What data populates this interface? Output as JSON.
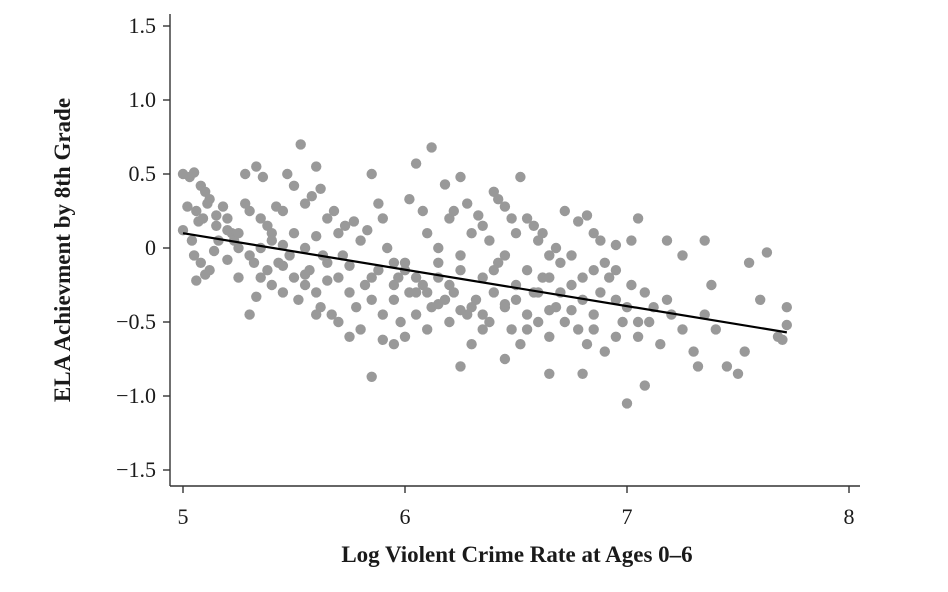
{
  "chart_data": {
    "type": "scatter",
    "title": "",
    "xlabel": "Log Violent Crime Rate at Ages 0–6",
    "ylabel": "ELA Achievment by 8th Grade",
    "xlim": [
      4.95,
      8.05
    ],
    "ylim": [
      -1.6,
      1.6
    ],
    "x_ticks": [
      5,
      6,
      7,
      8
    ],
    "x_tick_labels": [
      "5",
      "6",
      "7",
      "8"
    ],
    "y_ticks": [
      1.5,
      1.0,
      0.5,
      0,
      -0.5,
      -1.0,
      -1.5
    ],
    "y_tick_labels": [
      "1.5",
      "1.0",
      "0.5",
      "0",
      "−0.5",
      "−1.0",
      "−1.5"
    ],
    "grid": false,
    "legend": "none",
    "point_color": "#999999",
    "line_color": "#000000",
    "fit_line": {
      "x": [
        5.0,
        7.72
      ],
      "y": [
        0.1,
        -0.57
      ]
    },
    "points": [
      [
        5.0,
        0.5
      ],
      [
        5.03,
        0.48
      ],
      [
        5.05,
        0.51
      ],
      [
        5.02,
        0.28
      ],
      [
        5.06,
        0.25
      ],
      [
        5.08,
        0.42
      ],
      [
        5.1,
        0.38
      ],
      [
        5.12,
        0.33
      ],
      [
        5.0,
        0.12
      ],
      [
        5.04,
        0.05
      ],
      [
        5.07,
        0.18
      ],
      [
        5.09,
        0.2
      ],
      [
        5.11,
        0.3
      ],
      [
        5.15,
        0.22
      ],
      [
        5.18,
        0.28
      ],
      [
        5.2,
        0.2
      ],
      [
        5.22,
        0.1
      ],
      [
        5.25,
        0.0
      ],
      [
        5.05,
        -0.05
      ],
      [
        5.08,
        -0.1
      ],
      [
        5.1,
        -0.18
      ],
      [
        5.06,
        -0.22
      ],
      [
        5.12,
        -0.15
      ],
      [
        5.14,
        -0.02
      ],
      [
        5.16,
        0.05
      ],
      [
        5.2,
        -0.08
      ],
      [
        5.23,
        0.05
      ],
      [
        5.28,
        0.3
      ],
      [
        5.3,
        0.25
      ],
      [
        5.33,
        0.55
      ],
      [
        5.28,
        0.5
      ],
      [
        5.36,
        0.48
      ],
      [
        5.35,
        0.2
      ],
      [
        5.38,
        0.15
      ],
      [
        5.4,
        0.1
      ],
      [
        5.42,
        0.28
      ],
      [
        5.45,
        0.25
      ],
      [
        5.47,
        0.5
      ],
      [
        5.5,
        0.42
      ],
      [
        5.53,
        0.7
      ],
      [
        5.55,
        0.3
      ],
      [
        5.58,
        0.35
      ],
      [
        5.6,
        0.55
      ],
      [
        5.62,
        0.4
      ],
      [
        5.65,
        0.2
      ],
      [
        5.3,
        -0.05
      ],
      [
        5.32,
        -0.1
      ],
      [
        5.35,
        -0.2
      ],
      [
        5.38,
        -0.15
      ],
      [
        5.4,
        -0.25
      ],
      [
        5.43,
        -0.1
      ],
      [
        5.45,
        -0.3
      ],
      [
        5.48,
        -0.05
      ],
      [
        5.5,
        -0.2
      ],
      [
        5.52,
        -0.35
      ],
      [
        5.55,
        -0.25
      ],
      [
        5.57,
        -0.15
      ],
      [
        5.6,
        -0.3
      ],
      [
        5.62,
        -0.4
      ],
      [
        5.65,
        -0.1
      ],
      [
        5.67,
        -0.45
      ],
      [
        5.7,
        -0.2
      ],
      [
        5.72,
        -0.05
      ],
      [
        5.75,
        -0.3
      ],
      [
        5.78,
        -0.4
      ],
      [
        5.8,
        -0.55
      ],
      [
        5.82,
        -0.25
      ],
      [
        5.85,
        -0.35
      ],
      [
        5.88,
        -0.15
      ],
      [
        5.9,
        -0.45
      ],
      [
        5.3,
        -0.45
      ],
      [
        5.33,
        -0.33
      ],
      [
        5.25,
        -0.2
      ],
      [
        5.2,
        0.12
      ],
      [
        5.4,
        0.05
      ],
      [
        5.45,
        0.02
      ],
      [
        5.5,
        0.1
      ],
      [
        5.55,
        0.0
      ],
      [
        5.6,
        0.08
      ],
      [
        5.63,
        -0.05
      ],
      [
        5.68,
        0.25
      ],
      [
        5.7,
        0.1
      ],
      [
        5.73,
        0.15
      ],
      [
        5.77,
        0.18
      ],
      [
        5.8,
        0.05
      ],
      [
        5.83,
        0.12
      ],
      [
        5.85,
        0.5
      ],
      [
        5.88,
        0.3
      ],
      [
        5.9,
        0.2
      ],
      [
        5.92,
        0.0
      ],
      [
        5.95,
        -0.1
      ],
      [
        5.97,
        -0.2
      ],
      [
        6.0,
        -0.15
      ],
      [
        6.02,
        0.33
      ],
      [
        6.05,
        0.57
      ],
      [
        6.08,
        0.25
      ],
      [
        6.1,
        0.1
      ],
      [
        6.12,
        0.68
      ],
      [
        6.15,
        0.0
      ],
      [
        6.18,
        0.43
      ],
      [
        6.2,
        0.2
      ],
      [
        6.22,
        0.25
      ],
      [
        6.25,
        0.48
      ],
      [
        6.28,
        0.3
      ],
      [
        6.3,
        0.1
      ],
      [
        6.33,
        0.22
      ],
      [
        6.35,
        0.15
      ],
      [
        6.38,
        0.05
      ],
      [
        6.4,
        0.38
      ],
      [
        6.42,
        0.33
      ],
      [
        6.45,
        0.28
      ],
      [
        6.48,
        0.2
      ],
      [
        6.5,
        0.1
      ],
      [
        6.52,
        0.48
      ],
      [
        6.55,
        0.2
      ],
      [
        6.58,
        0.15
      ],
      [
        6.6,
        0.05
      ],
      [
        6.62,
        0.1
      ],
      [
        6.65,
        -0.05
      ],
      [
        6.68,
        0.0
      ],
      [
        5.95,
        -0.35
      ],
      [
        5.98,
        -0.5
      ],
      [
        6.0,
        -0.6
      ],
      [
        6.02,
        -0.3
      ],
      [
        6.05,
        -0.45
      ],
      [
        6.08,
        -0.25
      ],
      [
        6.1,
        -0.55
      ],
      [
        6.12,
        -0.4
      ],
      [
        6.15,
        -0.2
      ],
      [
        6.18,
        -0.35
      ],
      [
        6.2,
        -0.5
      ],
      [
        6.22,
        -0.3
      ],
      [
        6.25,
        -0.15
      ],
      [
        6.28,
        -0.45
      ],
      [
        6.3,
        -0.65
      ],
      [
        6.32,
        -0.35
      ],
      [
        6.35,
        -0.2
      ],
      [
        6.38,
        -0.5
      ],
      [
        6.4,
        -0.3
      ],
      [
        6.42,
        -0.1
      ],
      [
        6.45,
        -0.4
      ],
      [
        6.48,
        -0.55
      ],
      [
        6.5,
        -0.25
      ],
      [
        6.52,
        -0.65
      ],
      [
        6.55,
        -0.45
      ],
      [
        6.58,
        -0.3
      ],
      [
        6.6,
        -0.5
      ],
      [
        6.62,
        -0.2
      ],
      [
        6.65,
        -0.6
      ],
      [
        6.68,
        -0.4
      ],
      [
        6.7,
        -0.3
      ],
      [
        6.72,
        -0.5
      ],
      [
        6.75,
        -0.25
      ],
      [
        6.78,
        -0.55
      ],
      [
        6.8,
        -0.35
      ],
      [
        6.82,
        -0.65
      ],
      [
        6.85,
        -0.45
      ],
      [
        6.88,
        -0.3
      ],
      [
        6.9,
        -0.7
      ],
      [
        6.92,
        -0.2
      ],
      [
        6.95,
        -0.35
      ],
      [
        6.98,
        -0.5
      ],
      [
        7.0,
        -0.4
      ],
      [
        7.02,
        -0.25
      ],
      [
        7.05,
        -0.6
      ],
      [
        7.08,
        -0.3
      ],
      [
        7.1,
        -0.5
      ],
      [
        7.12,
        -0.4
      ],
      [
        7.15,
        -0.65
      ],
      [
        7.18,
        -0.35
      ],
      [
        7.2,
        -0.45
      ],
      [
        7.25,
        -0.55
      ],
      [
        7.3,
        -0.7
      ],
      [
        7.32,
        -0.8
      ],
      [
        7.35,
        -0.45
      ],
      [
        7.38,
        -0.25
      ],
      [
        7.4,
        -0.55
      ],
      [
        7.45,
        -0.8
      ],
      [
        7.5,
        -0.85
      ],
      [
        7.53,
        -0.7
      ],
      [
        7.55,
        -0.1
      ],
      [
        7.6,
        -0.35
      ],
      [
        7.63,
        -0.03
      ],
      [
        7.68,
        -0.6
      ],
      [
        7.7,
        -0.62
      ],
      [
        7.72,
        -0.4
      ],
      [
        7.72,
        -0.52
      ],
      [
        5.85,
        -0.87
      ],
      [
        6.25,
        -0.8
      ],
      [
        6.45,
        -0.75
      ],
      [
        6.65,
        -0.85
      ],
      [
        6.8,
        -0.85
      ],
      [
        7.0,
        -1.05
      ],
      [
        7.08,
        -0.93
      ],
      [
        6.88,
        0.05
      ],
      [
        6.95,
        0.02
      ],
      [
        7.02,
        0.05
      ],
      [
        7.05,
        0.2
      ],
      [
        7.18,
        0.05
      ],
      [
        7.25,
        -0.05
      ],
      [
        7.35,
        0.05
      ],
      [
        6.72,
        0.25
      ],
      [
        6.78,
        0.18
      ],
      [
        6.82,
        0.22
      ],
      [
        6.85,
        0.1
      ],
      [
        5.6,
        -0.45
      ],
      [
        5.7,
        -0.5
      ],
      [
        5.75,
        -0.6
      ],
      [
        5.9,
        -0.62
      ],
      [
        5.95,
        -0.65
      ],
      [
        6.0,
        -0.1
      ],
      [
        6.05,
        -0.2
      ],
      [
        6.1,
        -0.3
      ],
      [
        6.15,
        -0.1
      ],
      [
        6.2,
        -0.25
      ],
      [
        6.25,
        -0.05
      ],
      [
        6.3,
        -0.4
      ],
      [
        6.35,
        -0.55
      ],
      [
        6.4,
        -0.15
      ],
      [
        6.45,
        -0.05
      ],
      [
        6.5,
        -0.35
      ],
      [
        6.55,
        -0.15
      ],
      [
        6.6,
        -0.3
      ],
      [
        6.65,
        -0.2
      ],
      [
        6.7,
        -0.1
      ],
      [
        6.75,
        -0.05
      ],
      [
        6.8,
        -0.2
      ],
      [
        6.85,
        -0.15
      ],
      [
        6.9,
        -0.1
      ],
      [
        6.95,
        -0.15
      ],
      [
        5.15,
        0.15
      ],
      [
        5.25,
        0.1
      ],
      [
        5.35,
        0.0
      ],
      [
        5.45,
        -0.12
      ],
      [
        5.55,
        -0.18
      ],
      [
        5.65,
        -0.22
      ],
      [
        5.75,
        -0.12
      ],
      [
        5.85,
        -0.2
      ],
      [
        5.95,
        -0.25
      ],
      [
        6.05,
        -0.3
      ],
      [
        6.15,
        -0.38
      ],
      [
        6.25,
        -0.42
      ],
      [
        6.35,
        -0.45
      ],
      [
        6.45,
        -0.38
      ],
      [
        6.55,
        -0.55
      ],
      [
        6.65,
        -0.42
      ],
      [
        6.75,
        -0.42
      ],
      [
        6.85,
        -0.55
      ],
      [
        6.95,
        -0.6
      ],
      [
        7.05,
        -0.5
      ]
    ]
  }
}
